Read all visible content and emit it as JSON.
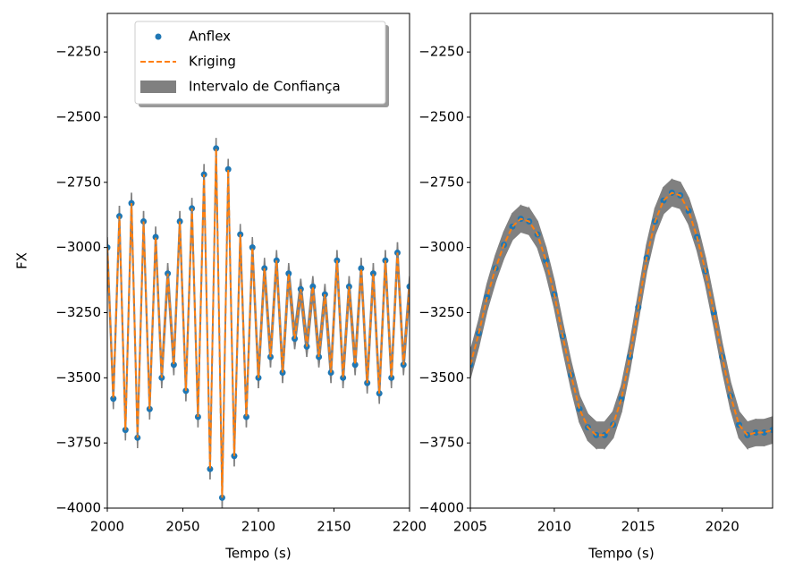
{
  "chart_data": [
    {
      "type": "line",
      "x_label": "Tempo (s)",
      "y_label": "FX",
      "xlim": [
        2000,
        2200
      ],
      "ylim": [
        -4000,
        -2102
      ],
      "xticks": [
        2000,
        2050,
        2100,
        2150,
        2200
      ],
      "yticks": [
        {
          "value": -4000,
          "label": "−4000"
        },
        {
          "value": -3750,
          "label": "−3750"
        },
        {
          "value": -3500,
          "label": "−3500"
        },
        {
          "value": -3250,
          "label": "−3250"
        },
        {
          "value": -3000,
          "label": "−3000"
        },
        {
          "value": -2750,
          "label": "−2750"
        },
        {
          "value": -2500,
          "label": "−2500"
        },
        {
          "value": -2250,
          "label": "−2250"
        }
      ],
      "legend": "upper center",
      "x": [
        2000,
        2004,
        2008,
        2012,
        2016,
        2020,
        2024,
        2028,
        2032,
        2036,
        2040,
        2044,
        2048,
        2052,
        2056,
        2060,
        2064,
        2068,
        2072,
        2076,
        2080,
        2084,
        2088,
        2092,
        2096,
        2100,
        2104,
        2108,
        2112,
        2116,
        2120,
        2124,
        2128,
        2132,
        2136,
        2140,
        2144,
        2148,
        2152,
        2156,
        2160,
        2164,
        2168,
        2172,
        2176,
        2180,
        2184,
        2188,
        2192,
        2196,
        2200
      ],
      "series": [
        {
          "name": "Intervalo de Confiança",
          "style": "band",
          "color": "#808080",
          "lower": [
            -3040,
            -3620,
            -2920,
            -3740,
            -2870,
            -3770,
            -2940,
            -3660,
            -3000,
            -3540,
            -3140,
            -3490,
            -2940,
            -3590,
            -2890,
            -3690,
            -2760,
            -3890,
            -2660,
            -4000,
            -2740,
            -3840,
            -2990,
            -3690,
            -3040,
            -3540,
            -3120,
            -3460,
            -3090,
            -3520,
            -3140,
            -3390,
            -3200,
            -3420,
            -3190,
            -3460,
            -3220,
            -3520,
            -3090,
            -3540,
            -3190,
            -3490,
            -3120,
            -3560,
            -3140,
            -3600,
            -3090,
            -3540,
            -3060,
            -3490,
            -3190
          ],
          "upper": [
            -2960,
            -3540,
            -2840,
            -3660,
            -2790,
            -3690,
            -2860,
            -3580,
            -2920,
            -3460,
            -3060,
            -3410,
            -2860,
            -3510,
            -2810,
            -3610,
            -2680,
            -3810,
            -2580,
            -3920,
            -2660,
            -3760,
            -2910,
            -3610,
            -2960,
            -3460,
            -3040,
            -3380,
            -3010,
            -3440,
            -3060,
            -3310,
            -3120,
            -3340,
            -3110,
            -3380,
            -3140,
            -3440,
            -3010,
            -3460,
            -3110,
            -3410,
            -3040,
            -3480,
            -3060,
            -3520,
            -3010,
            -3460,
            -2980,
            -3410,
            -3110
          ]
        },
        {
          "name": "Anflex",
          "style": "markers",
          "color": "#1f77b4",
          "values": [
            -3000,
            -3580,
            -2880,
            -3700,
            -2830,
            -3730,
            -2900,
            -3620,
            -2960,
            -3500,
            -3100,
            -3450,
            -2900,
            -3550,
            -2850,
            -3650,
            -2720,
            -3850,
            -2620,
            -3960,
            -2700,
            -3800,
            -2950,
            -3650,
            -3000,
            -3500,
            -3080,
            -3420,
            -3050,
            -3480,
            -3100,
            -3350,
            -3160,
            -3380,
            -3150,
            -3420,
            -3180,
            -3480,
            -3050,
            -3500,
            -3150,
            -3450,
            -3080,
            -3520,
            -3100,
            -3560,
            -3050,
            -3500,
            -3020,
            -3450,
            -3150
          ]
        },
        {
          "name": "Kriging",
          "style": "dashed",
          "color": "#ff7f0e",
          "values": [
            -3000,
            -3580,
            -2880,
            -3700,
            -2830,
            -3730,
            -2900,
            -3620,
            -2960,
            -3500,
            -3100,
            -3450,
            -2900,
            -3550,
            -2850,
            -3650,
            -2720,
            -3850,
            -2620,
            -3960,
            -2700,
            -3800,
            -2950,
            -3650,
            -3000,
            -3500,
            -3080,
            -3420,
            -3050,
            -3480,
            -3100,
            -3350,
            -3160,
            -3380,
            -3150,
            -3420,
            -3180,
            -3480,
            -3050,
            -3500,
            -3150,
            -3450,
            -3080,
            -3520,
            -3100,
            -3560,
            -3050,
            -3500,
            -3020,
            -3450,
            -3150
          ]
        }
      ]
    },
    {
      "type": "line",
      "x_label": "Tempo (s)",
      "xlim": [
        2005,
        2023
      ],
      "ylim": [
        -4000,
        -2102
      ],
      "xticks": [
        2005,
        2010,
        2015,
        2020
      ],
      "yticks": [
        {
          "value": -4000,
          "label": "−4000"
        },
        {
          "value": -3750,
          "label": "−3750"
        },
        {
          "value": -3500,
          "label": "−3500"
        },
        {
          "value": -3250,
          "label": "−3250"
        },
        {
          "value": -3000,
          "label": "−3000"
        },
        {
          "value": -2750,
          "label": "−2750"
        },
        {
          "value": -2500,
          "label": "−2500"
        },
        {
          "value": -2250,
          "label": "−2250"
        }
      ],
      "x": [
        2005,
        2005.5,
        2006,
        2006.5,
        2007,
        2007.5,
        2008,
        2008.5,
        2009,
        2009.5,
        2010,
        2010.5,
        2011,
        2011.5,
        2012,
        2012.5,
        2013,
        2013.5,
        2014,
        2014.5,
        2015,
        2015.5,
        2016,
        2016.5,
        2017,
        2017.5,
        2018,
        2018.5,
        2019,
        2019.5,
        2020,
        2020.5,
        2021,
        2021.5,
        2022,
        2022.5,
        2023
      ],
      "series": [
        {
          "style": "band",
          "color": "#808080",
          "lower": [
            -3500,
            -3380,
            -3240,
            -3130,
            -3040,
            -2970,
            -2940,
            -2950,
            -3000,
            -3100,
            -3230,
            -3390,
            -3540,
            -3670,
            -3740,
            -3770,
            -3770,
            -3730,
            -3630,
            -3470,
            -3280,
            -3090,
            -2950,
            -2870,
            -2840,
            -2850,
            -2910,
            -3010,
            -3140,
            -3300,
            -3470,
            -3620,
            -3730,
            -3770,
            -3760,
            -3760,
            -3750
          ],
          "upper": [
            -3400,
            -3280,
            -3140,
            -3030,
            -2940,
            -2870,
            -2840,
            -2850,
            -2900,
            -3000,
            -3130,
            -3290,
            -3440,
            -3570,
            -3640,
            -3670,
            -3670,
            -3630,
            -3530,
            -3370,
            -3180,
            -2990,
            -2850,
            -2770,
            -2740,
            -2750,
            -2810,
            -2910,
            -3040,
            -3200,
            -3370,
            -3520,
            -3630,
            -3670,
            -3660,
            -3660,
            -3650
          ]
        },
        {
          "style": "markers",
          "color": "#1f77b4",
          "values": [
            -3450,
            -3330,
            -3190,
            -3080,
            -2990,
            -2920,
            -2890,
            -2900,
            -2950,
            -3050,
            -3180,
            -3340,
            -3490,
            -3620,
            -3690,
            -3720,
            -3720,
            -3680,
            -3580,
            -3420,
            -3230,
            -3040,
            -2900,
            -2820,
            -2790,
            -2800,
            -2860,
            -2960,
            -3090,
            -3250,
            -3420,
            -3570,
            -3680,
            -3720,
            -3710,
            -3710,
            -3700
          ]
        },
        {
          "style": "dashed",
          "color": "#ff7f0e",
          "values": [
            -3450,
            -3330,
            -3190,
            -3080,
            -2990,
            -2920,
            -2890,
            -2900,
            -2950,
            -3050,
            -3180,
            -3340,
            -3490,
            -3620,
            -3690,
            -3720,
            -3720,
            -3680,
            -3580,
            -3420,
            -3230,
            -3040,
            -2900,
            -2820,
            -2790,
            -2800,
            -2860,
            -2960,
            -3090,
            -3250,
            -3420,
            -3570,
            -3680,
            -3720,
            -3710,
            -3710,
            -3700
          ]
        }
      ]
    }
  ]
}
